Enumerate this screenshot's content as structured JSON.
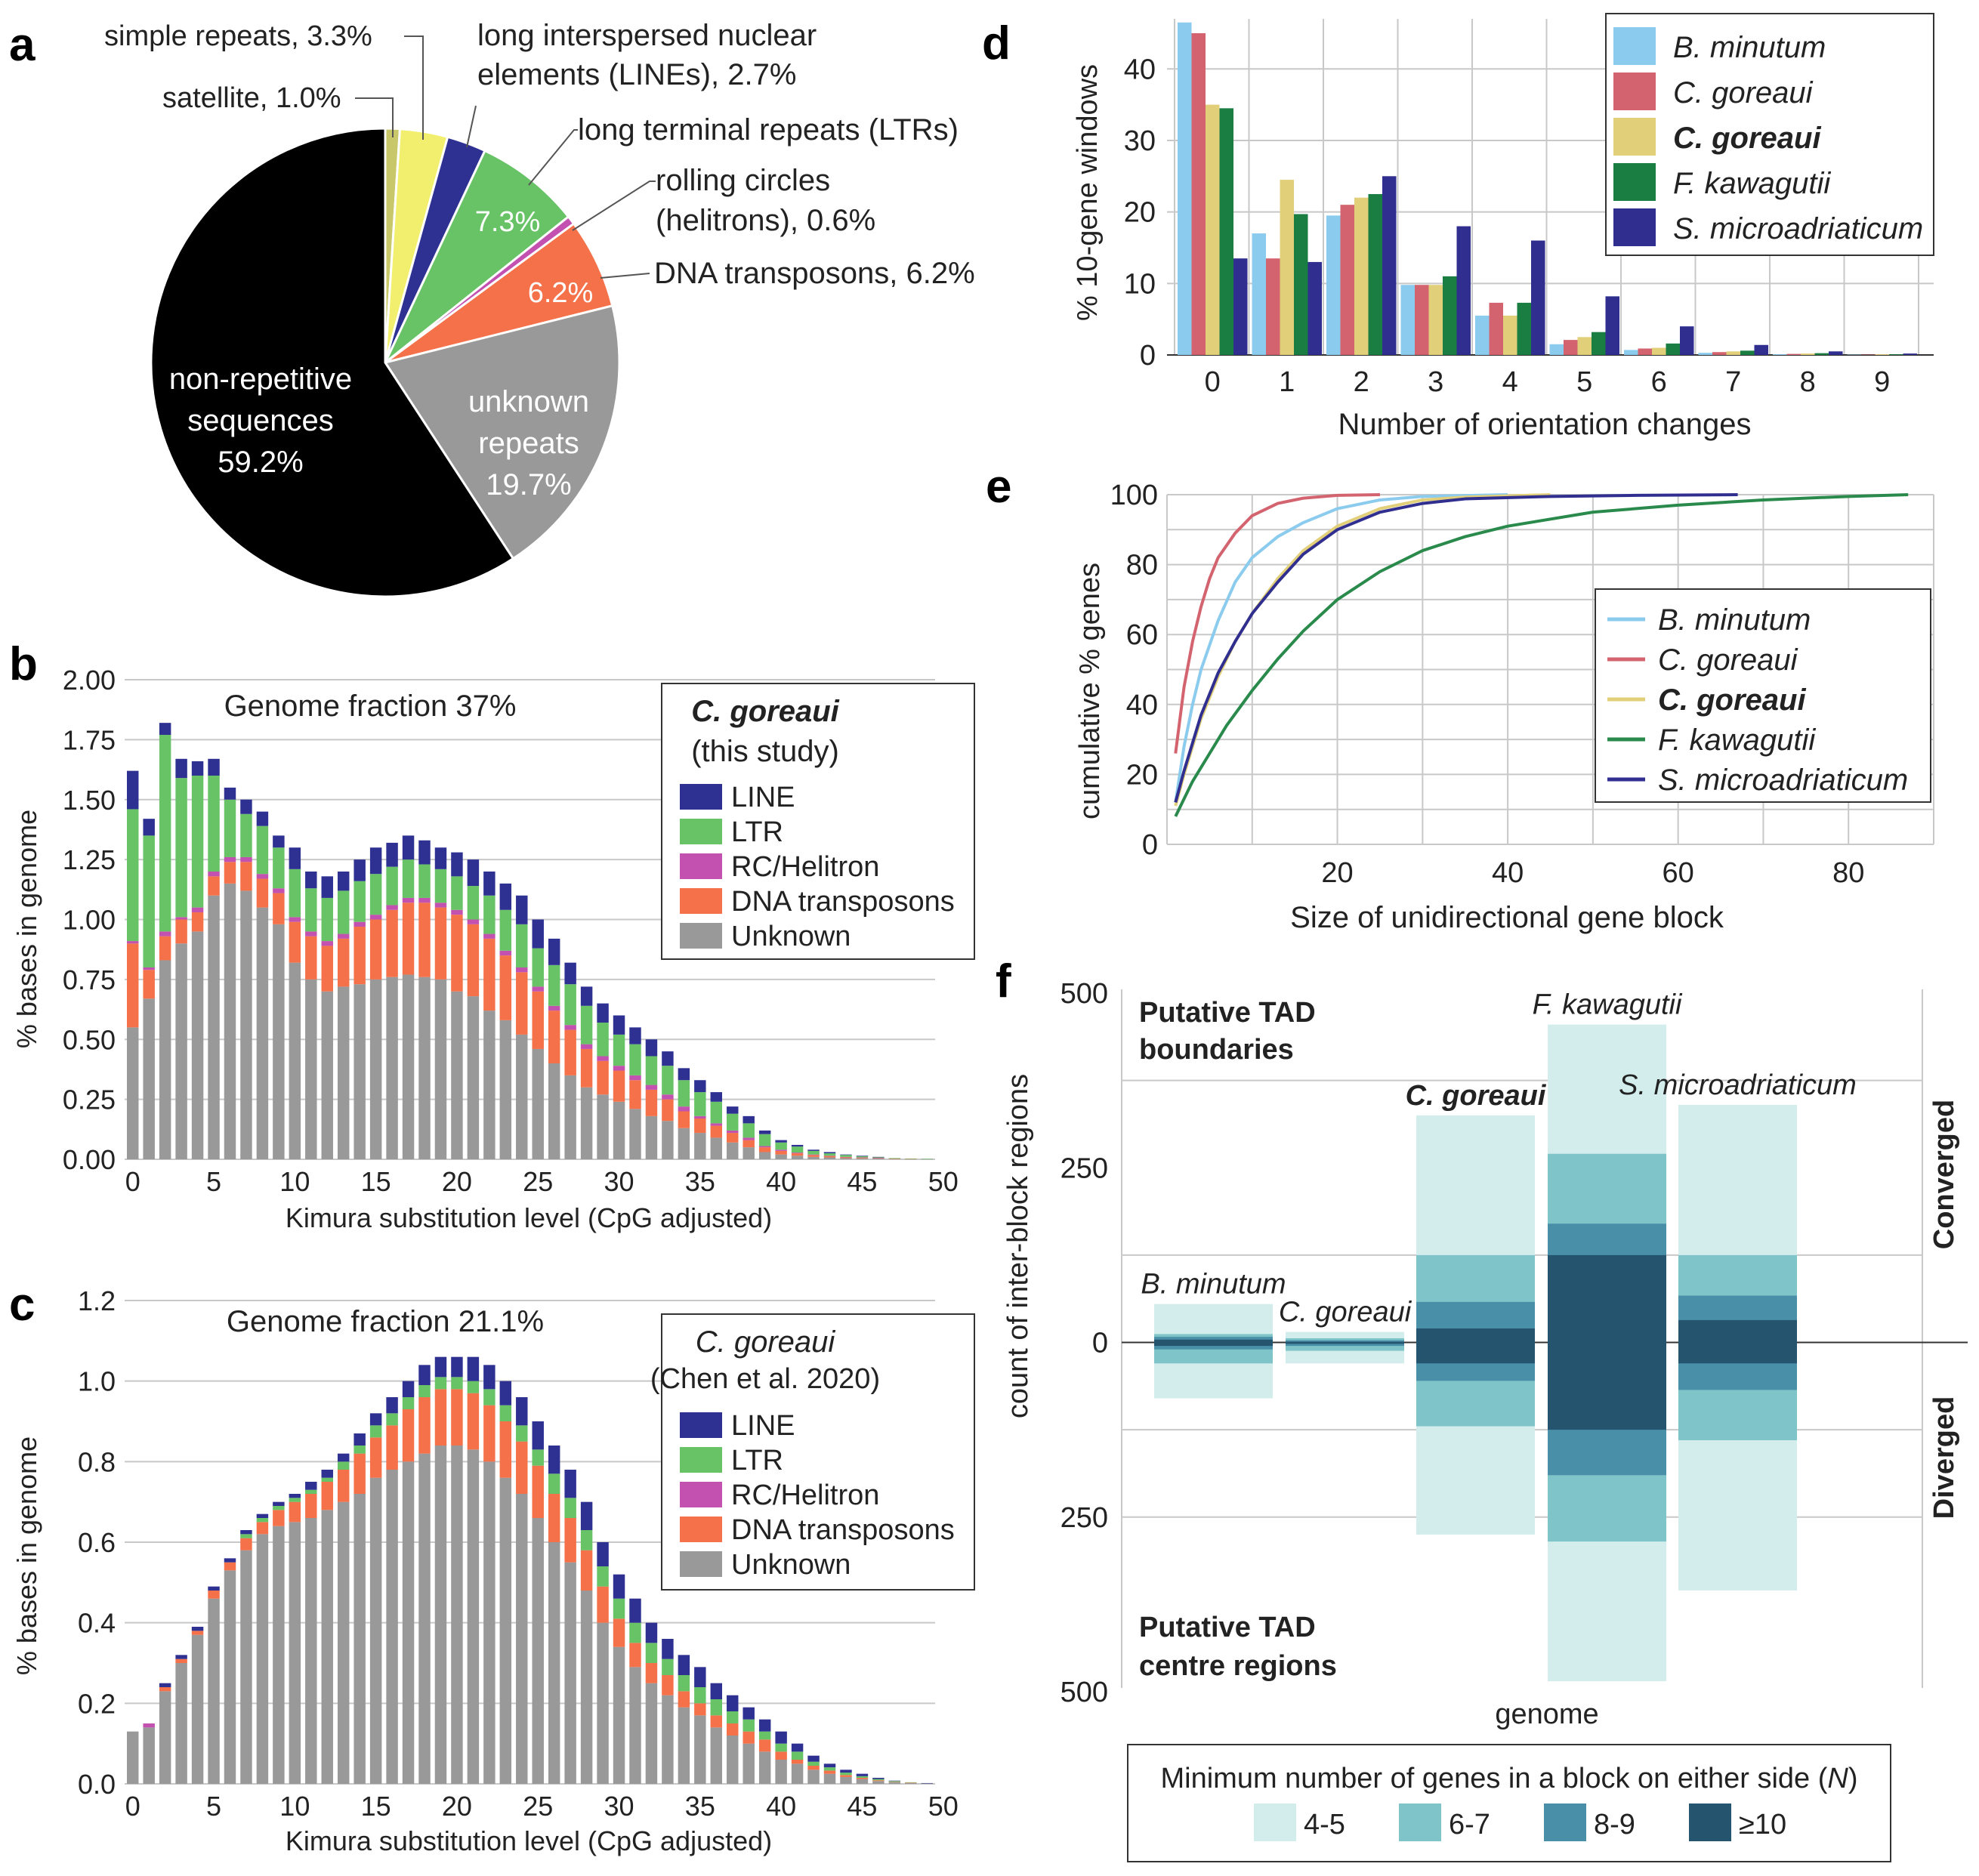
{
  "panel_labels": {
    "a": "a",
    "b": "b",
    "c": "c",
    "d": "d",
    "e": "e",
    "f": "f"
  },
  "colors": {
    "black": "#000000",
    "grey": "#999999",
    "orange": "#f4714a",
    "magenta": "#c351b0",
    "green": "#67c365",
    "navy": "#2e3192",
    "yellow": "#f3ef6e",
    "olive": "#c8c86a",
    "light_blue": "#8bcbee",
    "pink": "#d3646f",
    "gold": "#e2cf7a",
    "dark_green": "#1a7d42",
    "purple": "#302f8f",
    "e_green": "#2a8a4c",
    "f_c1": "#d3ecec",
    "f_c2": "#7fc4c8",
    "f_c3": "#4a8fa8",
    "f_c4": "#25546f"
  },
  "chart_data": [
    {
      "id": "a",
      "type": "pie",
      "slices": [
        {
          "label": "satellite, 1.0%",
          "value": 1.0
        },
        {
          "label": "simple repeats, 3.3%",
          "value": 3.3
        },
        {
          "label": "long interspersed nuclear elements (LINEs), 2.7%",
          "value": 2.7
        },
        {
          "label": "long terminal repeats (LTRs)",
          "value": 7.3,
          "inner_label": "7.3%"
        },
        {
          "label": "rolling circles (helitrons), 0.6%",
          "value": 0.6
        },
        {
          "label": "DNA transposons, 6.2%",
          "value": 6.2,
          "inner_label": "6.2%"
        },
        {
          "label": "unknown repeats 19.7%",
          "value": 19.7
        },
        {
          "label": "non-repetitive sequences 59.2%",
          "value": 59.2
        }
      ],
      "text": {
        "satellite": "satellite, 1.0%",
        "simple": "simple repeats, 3.3%",
        "line1": "long interspersed nuclear",
        "line2": "elements (LINEs), 2.7%",
        "ltr": "long terminal repeats (LTRs)",
        "ltr_in": "7.3%",
        "rc1": "rolling circles",
        "rc2": "(helitrons), 0.6%",
        "dna": "DNA transposons, 6.2%",
        "dna_in": "6.2%",
        "unk1": "unknown",
        "unk2": "repeats",
        "unk3": "19.7%",
        "non1": "non-repetitive",
        "non2": "sequences",
        "non3": "59.2%"
      }
    },
    {
      "id": "b",
      "type": "bar",
      "stacked": true,
      "title": "Genome fraction 37%",
      "xlabel": "Kimura substitution level (CpG adjusted)",
      "ylabel": "% bases in genome",
      "ylim": [
        0,
        2.0
      ],
      "yticks": [
        "0.00",
        "0.25",
        "0.50",
        "0.75",
        "1.00",
        "1.25",
        "1.50",
        "1.75",
        "2.00"
      ],
      "xticks": [
        "0",
        "5",
        "10",
        "15",
        "20",
        "25",
        "30",
        "35",
        "40",
        "45",
        "50"
      ],
      "legend_title": "C. goreaui",
      "legend_subtitle": "(this study)",
      "series_names": [
        "Unknown",
        "DNA transposons",
        "RC/Helitron",
        "LTR",
        "LINE"
      ],
      "legend_entries": [
        "LINE",
        "LTR",
        "RC/Helitron",
        "DNA transposons",
        "Unknown"
      ],
      "totals": [
        1.62,
        1.42,
        1.82,
        1.67,
        1.66,
        1.67,
        1.55,
        1.5,
        1.45,
        1.35,
        1.3,
        1.2,
        1.18,
        1.2,
        1.25,
        1.3,
        1.32,
        1.35,
        1.33,
        1.3,
        1.28,
        1.25,
        1.2,
        1.15,
        1.1,
        1.0,
        0.92,
        0.82,
        0.72,
        0.65,
        0.6,
        0.55,
        0.5,
        0.45,
        0.38,
        0.33,
        0.28,
        0.22,
        0.18,
        0.12,
        0.08,
        0.06,
        0.04,
        0.03,
        0.02,
        0.015,
        0.01,
        0.005,
        0.003,
        0.002
      ],
      "unknown": [
        0.55,
        0.67,
        0.83,
        0.9,
        0.95,
        1.1,
        1.15,
        1.12,
        1.05,
        0.98,
        0.82,
        0.75,
        0.7,
        0.72,
        0.73,
        0.75,
        0.76,
        0.77,
        0.76,
        0.75,
        0.7,
        0.68,
        0.62,
        0.58,
        0.52,
        0.46,
        0.4,
        0.35,
        0.3,
        0.27,
        0.24,
        0.21,
        0.18,
        0.16,
        0.13,
        0.11,
        0.09,
        0.07,
        0.05,
        0.03,
        0.02,
        0.015,
        0.01,
        0.008,
        0.005,
        0.004,
        0.003,
        0.002,
        0.001,
        0.001
      ],
      "dna": [
        0.35,
        0.12,
        0.1,
        0.1,
        0.08,
        0.08,
        0.09,
        0.12,
        0.12,
        0.13,
        0.17,
        0.18,
        0.19,
        0.2,
        0.24,
        0.25,
        0.28,
        0.3,
        0.31,
        0.3,
        0.32,
        0.3,
        0.3,
        0.27,
        0.26,
        0.24,
        0.22,
        0.19,
        0.16,
        0.14,
        0.13,
        0.12,
        0.11,
        0.09,
        0.07,
        0.06,
        0.05,
        0.04,
        0.03,
        0.02,
        0.015,
        0.01,
        0.008,
        0.006,
        0.004,
        0.003,
        0.002,
        0.001,
        0.001,
        0.0
      ],
      "rc": [
        0.01,
        0.01,
        0.02,
        0.01,
        0.02,
        0.02,
        0.02,
        0.02,
        0.02,
        0.02,
        0.02,
        0.02,
        0.02,
        0.02,
        0.02,
        0.02,
        0.02,
        0.02,
        0.02,
        0.02,
        0.02,
        0.02,
        0.02,
        0.02,
        0.02,
        0.02,
        0.02,
        0.02,
        0.02,
        0.02,
        0.02,
        0.02,
        0.02,
        0.02,
        0.02,
        0.01,
        0.01,
        0.01,
        0.01,
        0.005,
        0.005,
        0.003,
        0.002,
        0.001,
        0.001,
        0.001,
        0.001,
        0.0,
        0.0,
        0.0
      ],
      "ltr": [
        0.55,
        0.55,
        0.82,
        0.58,
        0.55,
        0.4,
        0.24,
        0.18,
        0.2,
        0.17,
        0.2,
        0.18,
        0.18,
        0.18,
        0.17,
        0.17,
        0.16,
        0.16,
        0.14,
        0.14,
        0.14,
        0.14,
        0.16,
        0.17,
        0.18,
        0.16,
        0.17,
        0.17,
        0.16,
        0.14,
        0.13,
        0.13,
        0.12,
        0.12,
        0.11,
        0.1,
        0.09,
        0.07,
        0.06,
        0.05,
        0.03,
        0.025,
        0.015,
        0.01,
        0.008,
        0.005,
        0.003,
        0.002,
        0.001,
        0.001
      ]
    },
    {
      "id": "c",
      "type": "bar",
      "stacked": true,
      "title": "Genome fraction 21.1%",
      "xlabel": "Kimura substitution level (CpG adjusted)",
      "ylabel": "% bases in genome",
      "ylim": [
        0,
        1.2
      ],
      "yticks": [
        "0.0",
        "0.2",
        "0.4",
        "0.6",
        "0.8",
        "1.0",
        "1.2"
      ],
      "xticks": [
        "0",
        "5",
        "10",
        "15",
        "20",
        "25",
        "30",
        "35",
        "40",
        "45",
        "50"
      ],
      "legend_title": "C. goreaui",
      "legend_subtitle": "(Chen et al. 2020)",
      "series_names": [
        "Unknown",
        "DNA transposons",
        "RC/Helitron",
        "LTR",
        "LINE"
      ],
      "legend_entries": [
        "LINE",
        "LTR",
        "RC/Helitron",
        "DNA transposons",
        "Unknown"
      ],
      "totals": [
        0.13,
        0.15,
        0.25,
        0.32,
        0.39,
        0.49,
        0.56,
        0.63,
        0.67,
        0.7,
        0.72,
        0.75,
        0.78,
        0.82,
        0.87,
        0.92,
        0.96,
        1.0,
        1.04,
        1.06,
        1.06,
        1.06,
        1.04,
        1.0,
        0.96,
        0.9,
        0.84,
        0.78,
        0.7,
        0.6,
        0.52,
        0.46,
        0.4,
        0.36,
        0.32,
        0.29,
        0.25,
        0.22,
        0.19,
        0.16,
        0.13,
        0.1,
        0.07,
        0.05,
        0.035,
        0.025,
        0.015,
        0.008,
        0.004,
        0.002
      ],
      "unknown": [
        0.13,
        0.14,
        0.23,
        0.3,
        0.37,
        0.46,
        0.53,
        0.58,
        0.62,
        0.64,
        0.65,
        0.66,
        0.68,
        0.7,
        0.72,
        0.76,
        0.78,
        0.8,
        0.82,
        0.84,
        0.84,
        0.83,
        0.8,
        0.76,
        0.72,
        0.66,
        0.6,
        0.55,
        0.48,
        0.4,
        0.34,
        0.29,
        0.25,
        0.22,
        0.19,
        0.17,
        0.14,
        0.12,
        0.1,
        0.08,
        0.06,
        0.05,
        0.035,
        0.025,
        0.017,
        0.012,
        0.007,
        0.004,
        0.002,
        0.001
      ],
      "dna": [
        0.0,
        0.0,
        0.01,
        0.01,
        0.01,
        0.02,
        0.02,
        0.03,
        0.03,
        0.04,
        0.05,
        0.06,
        0.07,
        0.08,
        0.1,
        0.1,
        0.11,
        0.13,
        0.14,
        0.14,
        0.14,
        0.14,
        0.14,
        0.14,
        0.13,
        0.13,
        0.12,
        0.11,
        0.1,
        0.09,
        0.07,
        0.06,
        0.05,
        0.05,
        0.04,
        0.03,
        0.03,
        0.03,
        0.03,
        0.03,
        0.02,
        0.01,
        0.01,
        0.008,
        0.005,
        0.003,
        0.002,
        0.001,
        0.001,
        0.0
      ],
      "rc": [
        0.0,
        0.01,
        0.0,
        0.0,
        0.0,
        0.0,
        0.0,
        0.0,
        0.0,
        0.0,
        0.0,
        0.0,
        0.0,
        0.0,
        0.0,
        0.0,
        0.0,
        0.0,
        0.0,
        0.0,
        0.0,
        0.0,
        0.0,
        0.0,
        0.0,
        0.0,
        0.0,
        0.0,
        0.0,
        0.0,
        0.0,
        0.0,
        0.0,
        0.0,
        0.0,
        0.0,
        0.0,
        0.0,
        0.0,
        0.0,
        0.0,
        0.0,
        0.0,
        0.0,
        0.0,
        0.0,
        0.0,
        0.0,
        0.0,
        0.0
      ],
      "ltr": [
        0.0,
        0.0,
        0.0,
        0.0,
        0.0,
        0.0,
        0.0,
        0.01,
        0.01,
        0.01,
        0.01,
        0.01,
        0.01,
        0.02,
        0.02,
        0.03,
        0.03,
        0.03,
        0.03,
        0.03,
        0.03,
        0.03,
        0.04,
        0.04,
        0.04,
        0.04,
        0.05,
        0.05,
        0.05,
        0.05,
        0.05,
        0.05,
        0.05,
        0.04,
        0.04,
        0.04,
        0.04,
        0.03,
        0.03,
        0.02,
        0.02,
        0.02,
        0.01,
        0.008,
        0.006,
        0.004,
        0.003,
        0.002,
        0.001,
        0.0
      ]
    },
    {
      "id": "d",
      "type": "bar",
      "xlabel": "Number of orientation changes",
      "ylabel": "% 10-gene windows",
      "ylim": [
        0,
        47
      ],
      "yticks": [
        "0",
        "10",
        "20",
        "30",
        "40"
      ],
      "categories": [
        "0",
        "1",
        "2",
        "3",
        "4",
        "5",
        "6",
        "7",
        "8",
        "9"
      ],
      "series": [
        {
          "name": "B. minutum",
          "values": [
            46.5,
            17,
            19.5,
            9.8,
            5.5,
            1.5,
            0.7,
            0.3,
            0.1,
            0.05
          ]
        },
        {
          "name": "C. goreaui",
          "values": [
            45,
            13.5,
            21,
            9.8,
            7.3,
            2.1,
            0.9,
            0.4,
            0.15,
            0.05
          ]
        },
        {
          "name": "C. goreaui",
          "values": [
            35,
            24.5,
            22,
            9.8,
            5.5,
            2.5,
            1.0,
            0.5,
            0.2,
            0.1
          ],
          "bold": true
        },
        {
          "name": "F. kawagutii",
          "values": [
            34.5,
            19.7,
            22.5,
            11,
            7.3,
            3.2,
            1.6,
            0.6,
            0.25,
            0.1
          ]
        },
        {
          "name": "S. microadriaticum",
          "values": [
            13.5,
            13,
            25,
            18,
            16,
            8.2,
            4.0,
            1.4,
            0.5,
            0.2
          ]
        }
      ]
    },
    {
      "id": "e",
      "type": "line",
      "xlabel": "Size of unidirectional gene block",
      "ylabel": "cumulative % genes",
      "xlim": [
        0,
        90
      ],
      "ylim": [
        0,
        100
      ],
      "xticks": [
        "20",
        "40",
        "60",
        "80"
      ],
      "yticks": [
        "0",
        "20",
        "40",
        "60",
        "80",
        "100"
      ],
      "series": [
        {
          "name": "B. minutum",
          "x": [
            1,
            2,
            3,
            4,
            6,
            8,
            10,
            13,
            16,
            20,
            25,
            30,
            40
          ],
          "y": [
            12,
            28,
            40,
            50,
            64,
            75,
            82,
            88,
            92,
            96,
            98.5,
            99.5,
            100
          ]
        },
        {
          "name": "C. goreaui",
          "x": [
            1,
            2,
            3,
            4,
            5,
            6,
            8,
            10,
            13,
            16,
            20,
            25
          ],
          "y": [
            26,
            45,
            58,
            68,
            76,
            82,
            89,
            94,
            97.5,
            99,
            99.8,
            100
          ]
        },
        {
          "name": "C. goreaui",
          "bold": true,
          "x": [
            1,
            2,
            3,
            4,
            6,
            8,
            10,
            13,
            16,
            20,
            25,
            30,
            35,
            45
          ],
          "y": [
            11,
            20,
            28,
            36,
            48,
            58,
            66,
            76,
            84,
            91,
            96,
            98.5,
            99.3,
            100
          ]
        },
        {
          "name": "F. kawagutii",
          "x": [
            1,
            2,
            3,
            5,
            7,
            10,
            13,
            16,
            20,
            25,
            30,
            35,
            40,
            50,
            60,
            70,
            80,
            87
          ],
          "y": [
            8,
            13,
            18,
            26,
            34,
            44,
            53,
            61,
            70,
            78,
            84,
            88,
            91,
            95,
            97,
            98.5,
            99.5,
            100
          ]
        },
        {
          "name": "S. microadriaticum",
          "x": [
            1,
            2,
            3,
            4,
            6,
            8,
            10,
            13,
            16,
            20,
            25,
            30,
            35,
            45,
            55,
            67
          ],
          "y": [
            12,
            21,
            29,
            37,
            49,
            58,
            66,
            75,
            83,
            90,
            95,
            97.5,
            98.8,
            99.5,
            99.8,
            100
          ]
        }
      ]
    },
    {
      "id": "f",
      "type": "bar",
      "xlabel": "genome",
      "ylabel": "count of inter-block regions",
      "yticks": [
        "500",
        "250",
        "0",
        "250",
        "500"
      ],
      "ylim": [
        -500,
        500
      ],
      "top_label_1": "Putative TAD",
      "top_label_2": "boundaries",
      "bottom_label_1": "Putative TAD",
      "bottom_label_2": "centre regions",
      "right_top": "Converged",
      "right_bottom": "Diverged",
      "legend_title": "Minimum number of genes in a block on either side (",
      "legend_title_n": "N",
      "legend_title_end": ")",
      "legend_entries": [
        "4-5",
        "6-7",
        "8-9",
        "≥10"
      ],
      "genomes": [
        {
          "name": "B. minutum",
          "converged": [
            55,
            12,
            8,
            4
          ],
          "diverged": [
            80,
            30,
            10,
            5
          ]
        },
        {
          "name": "C. goreaui",
          "converged": [
            15,
            6,
            3,
            1
          ],
          "diverged": [
            30,
            12,
            5,
            2
          ]
        },
        {
          "name": "C. goreaui",
          "bold": true,
          "converged": [
            325,
            125,
            58,
            20
          ],
          "diverged": [
            275,
            120,
            55,
            30
          ]
        },
        {
          "name": "F. kawagutii",
          "converged": [
            455,
            270,
            170,
            125
          ],
          "diverged": [
            485,
            285,
            190,
            125
          ]
        },
        {
          "name": "S. microadriaticum",
          "converged": [
            340,
            125,
            67,
            32
          ],
          "diverged": [
            355,
            140,
            68,
            30
          ]
        }
      ]
    }
  ]
}
